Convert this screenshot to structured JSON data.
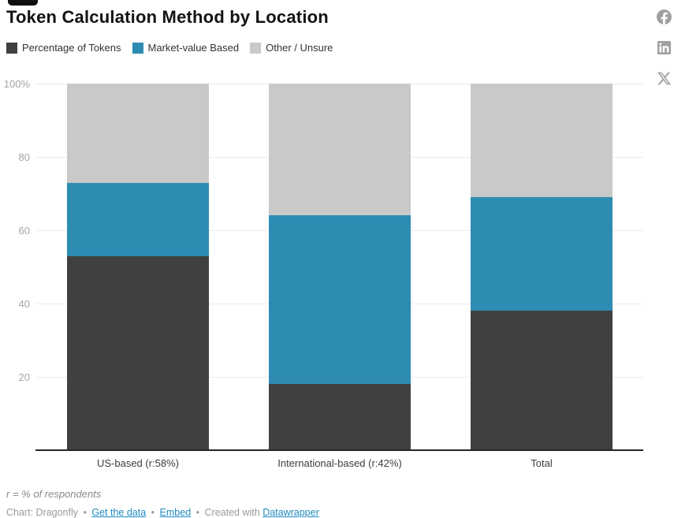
{
  "header": {
    "title": "Token Calculation Method by Location"
  },
  "chart_data": {
    "type": "bar",
    "stacked": true,
    "title": "Token Calculation Method by Location",
    "categories": [
      "US-based (r:58%)",
      "International-based (r:42%)",
      "Total"
    ],
    "series": [
      {
        "name": "Percentage of Tokens",
        "color": "#404040",
        "values": [
          53,
          18,
          38
        ]
      },
      {
        "name": "Market-value Based",
        "color": "#2e8cb2",
        "values": [
          20,
          46,
          31
        ]
      },
      {
        "name": "Other / Unsure",
        "color": "#c9c9c9",
        "values": [
          27,
          36,
          31
        ]
      }
    ],
    "xlabel": "",
    "ylabel": "",
    "ylim": [
      0,
      100
    ],
    "yticks": [
      {
        "value": 100,
        "label": "100%"
      },
      {
        "value": 80,
        "label": "80"
      },
      {
        "value": 60,
        "label": "60"
      },
      {
        "value": 40,
        "label": "40"
      },
      {
        "value": 20,
        "label": "20"
      }
    ],
    "grid": true,
    "legend_position": "top-left"
  },
  "footer": {
    "note": "r = % of respondents",
    "chart_by": "Chart: Dragonfly",
    "bullet": "•",
    "get_data_link": "Get the data",
    "embed_link": "Embed",
    "created_with": "Created with",
    "datawrapper_link": "Datawrapper"
  },
  "social": {
    "icons": [
      "facebook",
      "linkedin",
      "x"
    ],
    "icon_color": "#a0a0a0"
  },
  "colors": {
    "link_blue": "#1f8ac0",
    "gridline": "#ececec",
    "axis": "#262626",
    "ytick_text": "#a5a5a5",
    "xtick_text": "#3c3c3c"
  }
}
